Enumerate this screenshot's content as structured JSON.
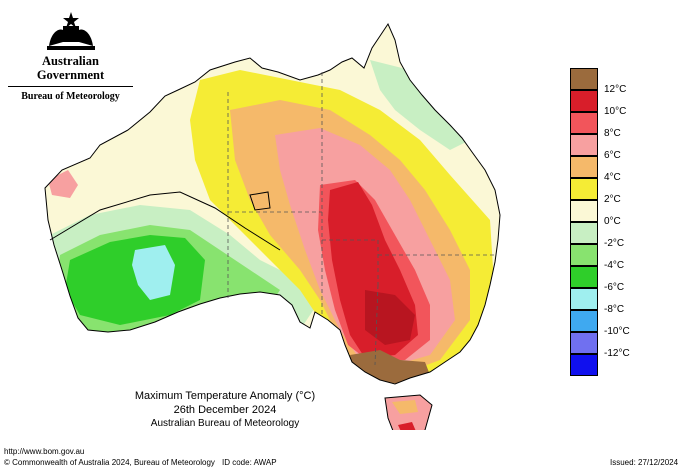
{
  "header": {
    "government": "Australian Government",
    "agency": "Bureau of Meteorology"
  },
  "map": {
    "title": "Maximum Temperature Anomaly (°C)",
    "date": "26th December 2024",
    "source": "Australian Bureau of Meteorology",
    "region": "Australia"
  },
  "legend": {
    "unit": "°C",
    "items": [
      {
        "label": "12°C",
        "color": "#9b6b3d"
      },
      {
        "label": "10°C",
        "color": "#d81e2a"
      },
      {
        "label": "8°C",
        "color": "#f2555b"
      },
      {
        "label": "6°C",
        "color": "#f7a0a0"
      },
      {
        "label": "4°C",
        "color": "#f5b96a"
      },
      {
        "label": "2°C",
        "color": "#f5ec35"
      },
      {
        "label": "0°C",
        "color": "#fbf8d6"
      },
      {
        "label": "-2°C",
        "color": "#c8efc3"
      },
      {
        "label": "-4°C",
        "color": "#88e36f"
      },
      {
        "label": "-6°C",
        "color": "#2fce2a"
      },
      {
        "label": "-8°C",
        "color": "#9fefef"
      },
      {
        "label": "-10°C",
        "color": "#3fa9f0"
      },
      {
        "label": "-12°C",
        "color": "#7070f0"
      },
      {
        "label": "",
        "color": "#1010ee"
      }
    ]
  },
  "footer": {
    "url": "http://www.bom.gov.au",
    "copyright": "© Commonwealth of Australia 2024, Bureau of Meteorology",
    "id_code": "ID code: AWAP",
    "issued": "Issued: 27/12/2024"
  }
}
